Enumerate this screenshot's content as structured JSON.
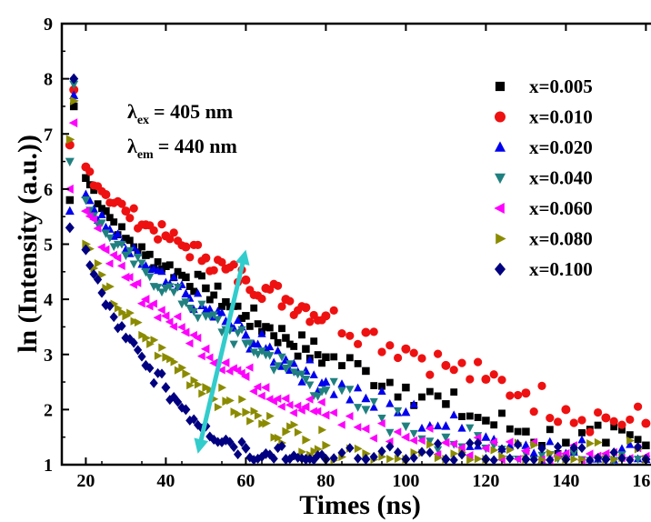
{
  "chart_data": {
    "type": "scatter",
    "xlabel": "Times (ns)",
    "ylabel": "ln (Intensity (a.u.))",
    "xlim": [
      14,
      164
    ],
    "ylim": [
      1,
      9
    ],
    "x_ticks": [
      20,
      40,
      60,
      80,
      100,
      120,
      140,
      160
    ],
    "y_ticks": [
      1,
      2,
      3,
      4,
      5,
      6,
      7,
      8,
      9
    ],
    "annotations": {
      "ex": {
        "symbol": "λ",
        "sub": "ex",
        "value": "= 405 nm"
      },
      "em": {
        "symbol": "λ",
        "sub": "em",
        "value": "= 440 nm"
      }
    },
    "arrow": {
      "from": [
        48,
        1.2
      ],
      "to": [
        60,
        4.9
      ],
      "color": "#33cccc",
      "note": "double-headed arrow"
    },
    "legend_position": "top-right",
    "series": [
      {
        "name": "x=0.005",
        "color": "#000000",
        "marker": "square",
        "x": [
          16,
          17,
          20,
          25,
          30,
          35,
          40,
          45,
          50,
          55,
          60,
          65,
          70,
          75,
          80,
          90,
          100,
          110,
          120,
          130,
          140,
          150,
          160
        ],
        "y": [
          5.8,
          7.5,
          6.2,
          5.6,
          5.1,
          4.8,
          4.6,
          4.4,
          4.2,
          3.95,
          3.7,
          3.5,
          3.3,
          3.1,
          2.95,
          2.7,
          2.4,
          2.1,
          1.8,
          1.6,
          1.4,
          1.4,
          1.35
        ]
      },
      {
        "name": "x=0.010",
        "color": "#ee1111",
        "marker": "circle",
        "x": [
          16,
          17,
          20,
          25,
          30,
          35,
          40,
          45,
          50,
          55,
          60,
          65,
          70,
          75,
          80,
          90,
          100,
          110,
          120,
          130,
          140,
          150,
          160
        ],
        "y": [
          6.8,
          7.8,
          6.4,
          5.9,
          5.6,
          5.35,
          5.15,
          4.95,
          4.75,
          4.55,
          4.35,
          4.2,
          4.0,
          3.85,
          3.7,
          3.4,
          3.1,
          2.8,
          2.55,
          2.3,
          2.0,
          1.85,
          1.75
        ]
      },
      {
        "name": "x=0.020",
        "color": "#0000ee",
        "marker": "triangle-up",
        "x": [
          16,
          17,
          20,
          25,
          30,
          35,
          40,
          45,
          50,
          55,
          60,
          65,
          70,
          75,
          80,
          90,
          100,
          110,
          120,
          130,
          140,
          150,
          160
        ],
        "y": [
          5.6,
          7.7,
          5.9,
          5.3,
          4.9,
          4.6,
          4.3,
          4.1,
          3.8,
          3.6,
          3.35,
          3.1,
          2.9,
          2.7,
          2.5,
          2.2,
          1.95,
          1.7,
          1.5,
          1.35,
          1.2,
          1.15,
          1.1
        ]
      },
      {
        "name": "x=0.040",
        "color": "#208080",
        "marker": "triangle-down",
        "x": [
          16,
          17,
          20,
          25,
          30,
          35,
          40,
          45,
          50,
          55,
          60,
          65,
          70,
          75,
          80,
          90,
          100,
          110,
          120,
          130,
          140,
          150,
          160
        ],
        "y": [
          6.5,
          7.9,
          5.8,
          5.2,
          4.8,
          4.5,
          4.2,
          3.95,
          3.7,
          3.45,
          3.2,
          3.0,
          2.75,
          2.55,
          2.35,
          2.0,
          1.7,
          1.5,
          1.3,
          1.2,
          1.1,
          1.1,
          1.1
        ]
      },
      {
        "name": "x=0.060",
        "color": "#ff00ff",
        "marker": "triangle-left",
        "x": [
          16,
          17,
          20,
          25,
          30,
          35,
          40,
          45,
          50,
          55,
          60,
          65,
          70,
          75,
          80,
          90,
          100,
          110,
          120,
          130,
          140,
          150,
          160
        ],
        "y": [
          6.0,
          7.2,
          5.6,
          4.9,
          4.4,
          4.0,
          3.7,
          3.4,
          3.1,
          2.85,
          2.6,
          2.4,
          2.2,
          2.05,
          1.9,
          1.65,
          1.5,
          1.4,
          1.3,
          1.25,
          1.2,
          1.2,
          1.15
        ]
      },
      {
        "name": "x=0.080",
        "color": "#8b8b00",
        "marker": "triangle-right",
        "x": [
          16,
          17,
          20,
          25,
          30,
          35,
          40,
          45,
          50,
          55,
          60,
          65,
          70,
          75,
          80,
          90,
          100,
          110,
          120,
          130,
          140,
          150,
          160
        ],
        "y": [
          6.9,
          7.6,
          5.0,
          4.2,
          3.7,
          3.3,
          2.95,
          2.65,
          2.4,
          2.15,
          1.95,
          1.75,
          1.6,
          1.45,
          1.35,
          1.2,
          1.1,
          1.1,
          1.1,
          1.1,
          1.1,
          1.1,
          1.1
        ]
      },
      {
        "name": "x=0.100",
        "color": "#000080",
        "marker": "diamond",
        "x": [
          16,
          17,
          20,
          25,
          30,
          35,
          40,
          45,
          50,
          55,
          60,
          65,
          70,
          75,
          80,
          90,
          100,
          110,
          120,
          130,
          140,
          150,
          160
        ],
        "y": [
          5.3,
          8.0,
          4.9,
          3.9,
          3.3,
          2.8,
          2.4,
          2.0,
          1.7,
          1.45,
          1.3,
          1.2,
          1.1,
          1.1,
          1.1,
          1.1,
          1.1,
          1.1,
          1.1,
          1.1,
          1.1,
          1.1,
          1.1
        ]
      }
    ]
  }
}
